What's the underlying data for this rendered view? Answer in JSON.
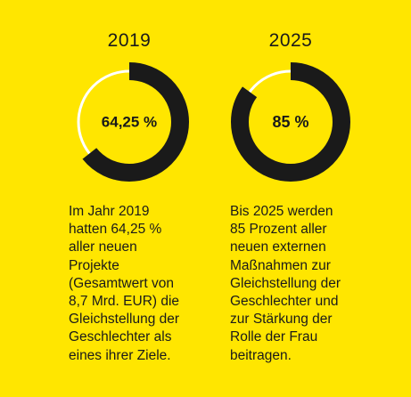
{
  "chart_data": [
    {
      "type": "pie",
      "title": "2019",
      "value": 64.25,
      "max": 100,
      "center_label": "64,25 %",
      "description": "Im Jahr 2019 hatten 64,25 % aller neuen Projekte (Gesamtwert von 8,7 Mrd. EUR) die Gleichstellung der Geschlechter als eines ihrer Ziele.",
      "description_lines": [
        "Im Jahr 2019",
        "hatten 64,25 %",
        "aller neuen",
        "Projekte",
        "(Gesamtwert von",
        "8,7 Mrd. EUR) die",
        "Gleichstellung der",
        "Geschlechter als",
        "eines ihrer Ziele."
      ]
    },
    {
      "type": "pie",
      "title": "2025",
      "value": 85,
      "max": 100,
      "center_label": "85 %",
      "description": "Bis 2025 werden 85 Prozent aller neuen externen Maßnahmen zur Gleichstellung der Geschlechter und zur Stärkung der Rolle der Frau beitragen.",
      "description_lines": [
        "Bis 2025 werden",
        "85 Prozent aller",
        "neuen externen",
        "Maßnahmen zur",
        "Gleichstellung der",
        "Geschlechter und",
        "zur Stärkung der",
        "Rolle der Frau",
        "beitragen."
      ]
    }
  ],
  "colors": {
    "background": "#FFE600",
    "filled_segment": "#1a1a1a",
    "remaining_segment": "#FFFFFF",
    "text": "#1a1a1a"
  }
}
